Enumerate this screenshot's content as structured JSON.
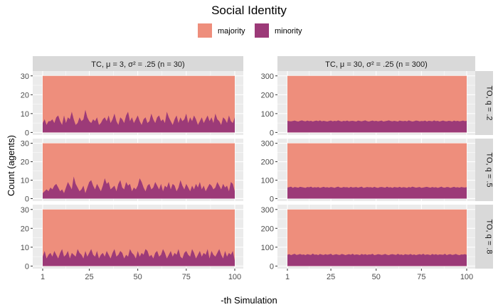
{
  "chart_data": {
    "type": "area",
    "title": "Social Identity",
    "xlabel": "-th Simulation",
    "ylabel": "Count (agents)",
    "legend": {
      "placement": "top",
      "entries": [
        {
          "name": "majority",
          "color": "#EE8E7C"
        },
        {
          "name": "minority",
          "color": "#9C3A78"
        }
      ]
    },
    "colors": {
      "majority": "#EE8E7C",
      "minority": "#9C3A78",
      "panel_bg": "#EBEBEB",
      "strip_bg": "#D9D9D9",
      "grid": "#FFFFFF"
    },
    "grid": true,
    "x_ticks": [
      "1",
      "25",
      "50",
      "75",
      "100"
    ],
    "x_range": [
      1,
      100
    ],
    "facets": {
      "columns": [
        {
          "label": "TC, μ = 3, σ² = .25 (n = 30)",
          "total": 30,
          "y_ticks": [
            "0",
            "10",
            "20",
            "30"
          ],
          "ylim": [
            0,
            30
          ]
        },
        {
          "label": "TC, μ = 30, σ² = .25 (n = 300)",
          "total": 300,
          "y_ticks": [
            "0",
            "100",
            "200",
            "300"
          ],
          "ylim": [
            0,
            300
          ]
        }
      ],
      "rows": [
        {
          "label": "TO, q = .2"
        },
        {
          "label": "TO, q = .5"
        },
        {
          "label": "TO, q = .8"
        }
      ]
    },
    "panels": [
      {
        "col": 0,
        "row": 0,
        "minority": [
          5,
          7,
          4,
          6,
          6,
          7,
          5,
          8,
          9,
          6,
          4,
          9,
          5,
          8,
          7,
          11,
          7,
          4,
          5,
          8,
          6,
          7,
          12,
          8,
          6,
          5,
          7,
          6,
          8,
          4,
          5,
          7,
          8,
          6,
          9,
          5,
          7,
          10,
          6,
          4,
          8,
          7,
          5,
          9,
          11,
          6,
          8,
          5,
          7,
          9,
          6,
          4,
          7,
          8,
          5,
          6,
          10,
          7,
          5,
          8,
          9,
          6,
          7,
          5,
          11,
          8,
          6,
          4,
          7,
          9,
          5,
          8,
          6,
          7,
          10,
          5,
          8,
          6,
          9,
          7,
          4,
          6,
          8,
          5,
          7,
          9,
          6,
          8,
          5,
          10,
          7,
          6,
          4,
          8,
          7,
          5,
          9,
          6,
          5,
          8
        ]
      },
      {
        "col": 0,
        "row": 1,
        "minority": [
          3,
          4,
          5,
          4,
          6,
          5,
          7,
          8,
          6,
          4,
          5,
          3,
          6,
          9,
          7,
          5,
          12,
          8,
          6,
          4,
          5,
          7,
          3,
          6,
          9,
          10,
          7,
          5,
          8,
          6,
          4,
          7,
          11,
          8,
          9,
          5,
          6,
          7,
          4,
          8,
          10,
          6,
          5,
          9,
          7,
          8,
          4,
          6,
          5,
          7,
          11,
          9,
          6,
          4,
          7,
          8,
          5,
          6,
          9,
          7,
          5,
          8,
          4,
          7,
          6,
          9,
          5,
          8,
          7,
          4,
          6,
          10,
          7,
          5,
          8,
          6,
          4,
          7,
          5,
          8,
          6,
          9,
          5,
          7,
          4,
          6,
          8,
          7,
          5,
          6,
          9,
          7,
          5,
          8,
          6,
          7,
          4,
          9,
          8,
          4
        ]
      },
      {
        "col": 0,
        "row": 2,
        "minority": [
          5,
          8,
          4,
          6,
          7,
          5,
          8,
          6,
          4,
          7,
          9,
          5,
          6,
          8,
          4,
          7,
          6,
          5,
          9,
          7,
          6,
          4,
          8,
          5,
          7,
          9,
          6,
          5,
          8,
          4,
          6,
          7,
          5,
          8,
          6,
          4,
          7,
          9,
          5,
          6,
          8,
          7,
          4,
          6,
          5,
          9,
          7,
          6,
          4,
          8,
          5,
          7,
          6,
          9,
          8,
          5,
          6,
          4,
          7,
          8,
          5,
          6,
          9,
          7,
          4,
          6,
          8,
          5,
          7,
          6,
          9,
          5,
          4,
          7,
          8,
          6,
          5,
          9,
          7,
          4,
          6,
          8,
          5,
          7,
          6,
          9,
          4,
          8,
          6,
          5,
          7,
          9,
          6,
          4,
          8,
          5,
          7,
          6,
          8,
          3
        ]
      },
      {
        "col": 1,
        "row": 0,
        "minority": [
          62,
          60,
          59,
          61,
          63,
          60,
          58,
          62,
          64,
          61,
          59,
          63,
          60,
          62,
          58,
          61,
          63,
          60,
          64,
          59,
          62,
          60,
          58,
          61,
          63,
          59,
          62,
          60,
          64,
          61,
          58,
          62,
          60,
          63,
          59,
          61,
          62,
          60,
          58,
          63,
          61,
          59,
          62,
          64,
          60,
          58,
          61,
          63,
          60,
          62,
          59,
          61,
          63,
          58,
          60,
          62,
          64,
          61,
          59,
          62,
          60,
          58,
          63,
          61,
          60,
          62,
          59,
          64,
          61,
          58,
          60,
          63,
          62,
          59,
          61,
          60,
          63,
          58,
          62,
          61,
          59,
          64,
          60,
          62,
          58,
          61,
          63,
          60,
          59,
          62,
          61,
          58,
          63,
          60,
          62,
          59,
          61,
          63,
          60,
          62
        ]
      },
      {
        "col": 1,
        "row": 1,
        "minority": [
          60,
          62,
          65,
          58,
          63,
          61,
          59,
          64,
          62,
          60,
          58,
          63,
          61,
          65,
          59,
          62,
          60,
          63,
          58,
          61,
          64,
          60,
          62,
          59,
          63,
          61,
          58,
          62,
          65,
          60,
          59,
          63,
          61,
          62,
          58,
          64,
          60,
          61,
          63,
          59,
          62,
          65,
          58,
          60,
          63,
          61,
          62,
          59,
          64,
          60,
          58,
          62,
          63,
          61,
          59,
          65,
          60,
          62,
          58,
          63,
          61,
          60,
          64,
          59,
          62,
          61,
          58,
          63,
          60,
          65,
          62,
          59,
          61,
          63,
          58,
          60,
          62,
          64,
          61,
          59,
          63,
          60,
          62,
          58,
          61,
          65,
          60,
          59,
          63,
          62,
          58,
          61,
          64,
          60,
          62,
          59,
          63,
          61,
          60,
          62
        ]
      },
      {
        "col": 1,
        "row": 2,
        "minority": [
          60,
          63,
          58,
          62,
          65,
          59,
          61,
          64,
          60,
          62,
          58,
          63,
          61,
          59,
          66,
          60,
          62,
          58,
          64,
          61,
          59,
          63,
          60,
          62,
          65,
          58,
          61,
          63,
          60,
          59,
          64,
          62,
          58,
          61,
          63,
          60,
          65,
          59,
          62,
          61,
          58,
          64,
          60,
          63,
          59,
          62,
          61,
          65,
          58,
          60,
          63,
          62,
          59,
          61,
          64,
          60,
          58,
          62,
          63,
          61,
          59,
          65,
          60,
          62,
          58,
          63,
          61,
          60,
          64,
          59,
          62,
          58,
          61,
          63,
          60,
          65,
          59,
          62,
          61,
          58,
          64,
          60,
          63,
          59,
          62,
          61,
          60,
          65,
          58,
          62,
          63,
          59,
          61,
          64,
          60,
          58,
          62,
          61,
          63,
          60
        ]
      }
    ]
  }
}
